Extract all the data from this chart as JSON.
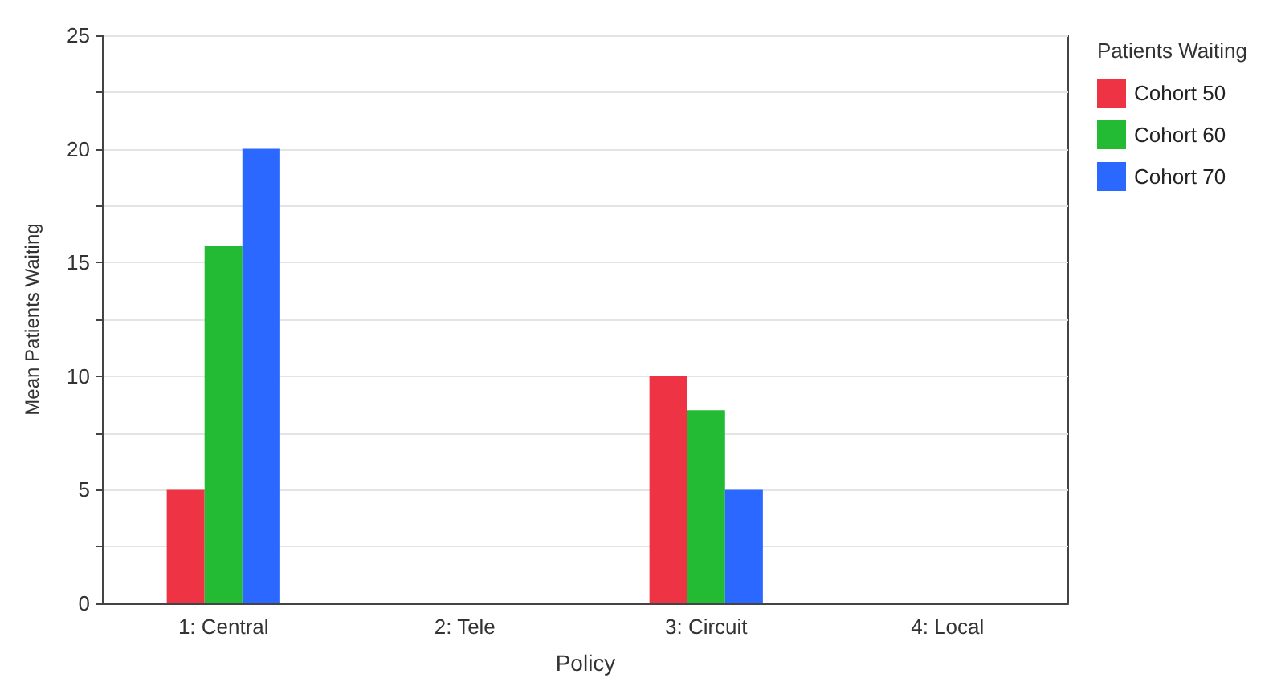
{
  "chart_data": {
    "type": "bar",
    "xlabel": "Policy",
    "ylabel": "Mean Patients Waiting",
    "legend_title": "Patients Waiting",
    "categories": [
      "1: Central",
      "2: Tele",
      "3: Circuit",
      "4: Local"
    ],
    "series": [
      {
        "name": "Cohort 50",
        "color": "#ee3344",
        "values": [
          5,
          null,
          10,
          null
        ]
      },
      {
        "name": "Cohort 60",
        "color": "#22bb33",
        "values": [
          15.75,
          null,
          8.5,
          null
        ]
      },
      {
        "name": "Cohort 70",
        "color": "#2a68ff",
        "values": [
          20,
          null,
          5,
          null
        ]
      }
    ],
    "ylim": [
      0,
      25
    ],
    "yticks": [
      0,
      {
        "value": 2.5,
        "label": null
      },
      5,
      {
        "value": 7.5,
        "label": null
      },
      10,
      {
        "value": 12.5,
        "label": null
      },
      15,
      {
        "value": 17.5,
        "label": null
      },
      20,
      {
        "value": 22.5,
        "label": null
      },
      25
    ],
    "grid": "y",
    "legend": "top right"
  }
}
